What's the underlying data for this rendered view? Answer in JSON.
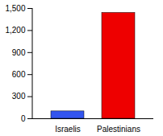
{
  "chart_data": {
    "type": "bar",
    "categories": [
      "Israelis",
      "Palestinians"
    ],
    "values": [
      100,
      1440
    ],
    "colors": [
      "#3355ee",
      "#ee0000"
    ],
    "ylim": [
      0,
      1500
    ],
    "yticks": [
      0,
      300,
      600,
      900,
      {
        "value": 1200,
        "label": "1,200"
      },
      {
        "value": 1500,
        "label": "1,500"
      }
    ],
    "grid": false
  }
}
